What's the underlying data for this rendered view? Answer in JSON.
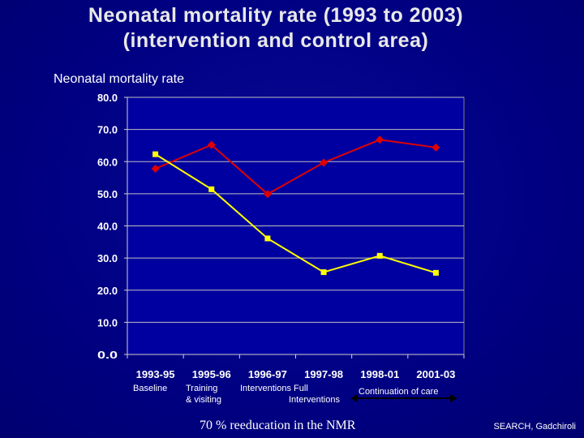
{
  "slide": {
    "title_line1": "Neonatal mortality rate (1993 to 2003)",
    "title_line2": "(intervention and control area)",
    "chart_label": "Neonatal mortality rate",
    "phases": {
      "baseline": "Baseline",
      "training_line1": "Training",
      "training_line2": "& visiting",
      "interventions_line1": "Interventions   Full",
      "interventions_line2": "Interventions",
      "continuation": "Continuation of care"
    },
    "footnote": "70 % reeducation in the NMR",
    "credit": "SEARCH, Gadchiroli"
  },
  "colors": {
    "background": "#000080",
    "plot_area": "#0000a0",
    "control_series": "#e00000",
    "intervention_series": "#ffff00",
    "grid": "#c0c0c0",
    "tick_labels": "#ffffff"
  },
  "chart_data": {
    "type": "line",
    "title": "",
    "xlabel": "",
    "ylabel": "Neonatal mortality rate",
    "categories": [
      "1993-95",
      "1995-96",
      "1996-97",
      "1997-98",
      "1998-01",
      "2001-03"
    ],
    "series": [
      {
        "color": "#e00000",
        "marker": "diamond",
        "values": [
          57.8,
          65.2,
          49.9,
          59.7,
          66.8,
          64.4
        ]
      },
      {
        "color": "#ffff00",
        "marker": "square",
        "values": [
          62.3,
          51.4,
          36.1,
          25.6,
          30.7,
          25.4
        ]
      }
    ],
    "yticks": [
      "0.0",
      "10.0",
      "20.0",
      "30.0",
      "40.0",
      "50.0",
      "60.0",
      "70.0",
      "80.0"
    ],
    "ylim": [
      0,
      80
    ],
    "grid": true,
    "legend": "none"
  }
}
